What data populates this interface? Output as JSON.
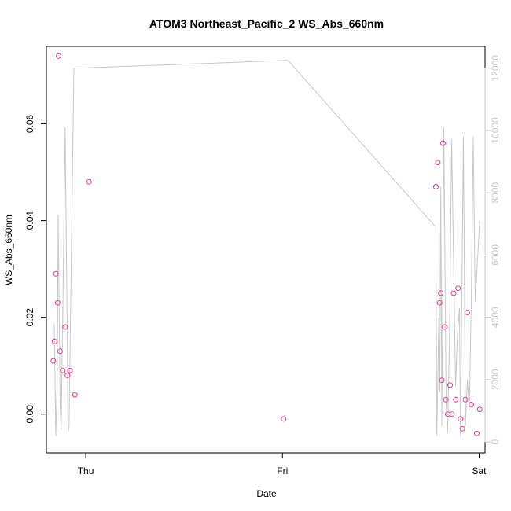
{
  "chart_data": {
    "type": "scatter",
    "title": "ATOM3 Northeast_Pacific_2 WS_Abs_660nm",
    "xlabel": "Date",
    "ylabel": "WS_Abs_660nm",
    "x_ticks": [
      "Thu",
      "Fri",
      "Sat"
    ],
    "x_tick_values": [
      0,
      1,
      2
    ],
    "xlim": [
      -0.2,
      2.03
    ],
    "ylim": [
      -0.008,
      0.076
    ],
    "y_ticks": [
      "0.00",
      "0.02",
      "0.04",
      "0.06"
    ],
    "y_tick_values": [
      0.0,
      0.02,
      0.04,
      0.06
    ],
    "y2_ticks": [
      "0",
      "2000",
      "4000",
      "6000",
      "8000",
      "10000",
      "12000"
    ],
    "y2_tick_values": [
      0,
      2000,
      4000,
      6000,
      8000,
      10000,
      12000
    ],
    "y2lim": [
      -350,
      12700
    ],
    "grid": false,
    "colors": {
      "points": "#e6399b",
      "line": "#c8c8c8",
      "right_axis": "#c8c8c8",
      "axis": "#000000"
    },
    "series": [
      {
        "values_x": [
          -0.165,
          -0.158,
          -0.152,
          -0.143,
          -0.138,
          -0.13,
          -0.117,
          -0.105,
          -0.093,
          -0.08,
          -0.055,
          0.017,
          1.006,
          1.78,
          1.79,
          1.799,
          1.805,
          1.81,
          1.816,
          1.824,
          1.83,
          1.84,
          1.852,
          1.862,
          1.87,
          1.881,
          1.893,
          1.905,
          1.915,
          1.93,
          1.94,
          1.96,
          1.988,
          2.003
        ],
        "values_y": [
          0.011,
          0.015,
          0.029,
          0.023,
          0.074,
          0.013,
          0.009,
          0.018,
          0.008,
          0.009,
          0.004,
          0.048,
          -0.001,
          0.047,
          0.052,
          0.023,
          0.025,
          0.007,
          0.056,
          0.018,
          0.003,
          0.0,
          0.006,
          0.0,
          0.025,
          0.003,
          0.026,
          -0.001,
          -0.003,
          0.003,
          0.021,
          0.002,
          -0.004,
          0.001
        ]
      },
      {
        "values_x": [
          -0.16,
          -0.152,
          -0.145,
          -0.14,
          -0.13,
          -0.125,
          -0.115,
          -0.105,
          -0.095,
          -0.09,
          -0.085,
          -0.06,
          -0.045,
          1.028,
          1.78,
          1.785,
          1.795,
          1.8,
          1.805,
          1.81,
          1.815,
          1.82,
          1.825,
          1.832,
          1.84,
          1.85,
          1.86,
          1.87,
          1.88,
          1.89,
          1.9,
          1.905,
          1.92,
          1.93,
          1.94,
          1.95,
          1.96,
          1.97,
          1.98,
          2.003
        ],
        "values_y2": [
          3800,
          200,
          2000,
          7300,
          1200,
          400,
          5000,
          10100,
          4000,
          300,
          500,
          12000,
          12000,
          12250,
          6900,
          200,
          4000,
          1600,
          8200,
          500,
          4800,
          10100,
          6800,
          1200,
          300,
          3800,
          9700,
          5800,
          1800,
          3500,
          4300,
          200,
          9800,
          500,
          2000,
          1000,
          4500,
          9800,
          4500,
          7100
        ]
      }
    ]
  }
}
